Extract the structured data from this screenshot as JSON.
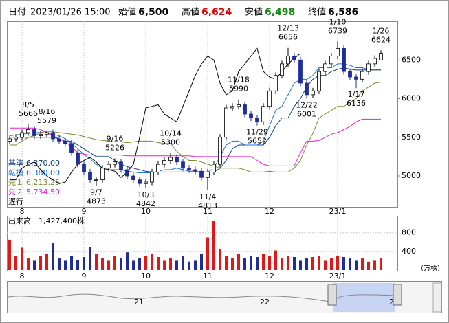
{
  "header": {
    "date_label": "日付",
    "datetime": "2023/01/26 15:00",
    "open_label": "始値",
    "open": "6,500",
    "high_label": "高値",
    "high": "6,624",
    "low_label": "安値",
    "low": "6,498",
    "close_label": "終値",
    "close": "6,586"
  },
  "navigator": {
    "labels": [
      "21",
      "22",
      "2"
    ]
  },
  "chart_data": [
    {
      "type": "candlestick",
      "categories": [
        null,
        null,
        "8",
        null,
        null,
        null,
        null,
        null,
        null,
        null,
        null,
        null,
        "9",
        null,
        null,
        null,
        null,
        null,
        null,
        null,
        null,
        null,
        "10",
        null,
        null,
        null,
        null,
        null,
        null,
        null,
        null,
        null,
        "11",
        null,
        null,
        null,
        null,
        null,
        null,
        null,
        null,
        null,
        "12",
        null,
        null,
        null,
        null,
        null,
        null,
        null,
        null,
        null,
        null,
        "23/1",
        null,
        null,
        null,
        null,
        null,
        null,
        null
      ],
      "open": [
        5450,
        5480,
        5500,
        5560,
        5600,
        5520,
        5540,
        5560,
        5480,
        5450,
        5420,
        5300,
        5150,
        5050,
        4950,
        4950,
        5100,
        5150,
        5180,
        5080,
        5000,
        4950,
        4900,
        4920,
        5050,
        5150,
        5200,
        5240,
        5180,
        5100,
        5080,
        5060,
        4980,
        5050,
        5150,
        5500,
        5880,
        5900,
        5920,
        5800,
        5750,
        5700,
        5900,
        6100,
        6300,
        6450,
        6550,
        6500,
        6200,
        6050,
        6100,
        6350,
        6450,
        6550,
        6650,
        6350,
        6280,
        6250,
        6350,
        6450,
        6500
      ],
      "high": [
        5520,
        5540,
        5600,
        5666,
        5640,
        5580,
        5579,
        5600,
        5520,
        5490,
        5460,
        5340,
        5190,
        5090,
        4990,
        5140,
        5190,
        5226,
        5220,
        5120,
        5040,
        4990,
        4960,
        5090,
        5190,
        5240,
        5300,
        5280,
        5220,
        5140,
        5120,
        5100,
        5090,
        5190,
        5540,
        5920,
        5940,
        5990,
        5960,
        5840,
        5790,
        5940,
        6140,
        6340,
        6490,
        6656,
        6590,
        6540,
        6240,
        6140,
        6390,
        6490,
        6590,
        6739,
        6690,
        6390,
        6320,
        6390,
        6490,
        6560,
        6624
      ],
      "low": [
        5410,
        5440,
        5460,
        5520,
        5480,
        5480,
        5500,
        5440,
        5410,
        5380,
        5260,
        5110,
        5010,
        4910,
        4873,
        4910,
        5060,
        5110,
        5040,
        4960,
        4910,
        4860,
        4842,
        4880,
        5010,
        5110,
        5160,
        5140,
        5060,
        5040,
        5020,
        4940,
        4813,
        5010,
        5110,
        5460,
        5840,
        5860,
        5760,
        5710,
        5652,
        5660,
        5860,
        6060,
        6260,
        6410,
        6460,
        6160,
        6001,
        6010,
        6060,
        6310,
        6410,
        6510,
        6310,
        6240,
        6136,
        6210,
        6310,
        6410,
        6498
      ],
      "close": [
        5480,
        5500,
        5560,
        5600,
        5520,
        5540,
        5560,
        5480,
        5450,
        5420,
        5300,
        5150,
        5050,
        4950,
        4950,
        5100,
        5150,
        5180,
        5080,
        5000,
        4950,
        4900,
        4920,
        5050,
        5150,
        5200,
        5240,
        5180,
        5100,
        5080,
        5060,
        4980,
        5050,
        5150,
        5500,
        5880,
        5900,
        5920,
        5800,
        5750,
        5700,
        5900,
        6100,
        6300,
        6450,
        6550,
        6500,
        6200,
        6050,
        6100,
        6350,
        6450,
        6550,
        6650,
        6350,
        6280,
        6250,
        6350,
        6450,
        6520,
        6586
      ],
      "up_color": "#ffffff",
      "down_color": "#1f2d9b",
      "ylim": [
        4600,
        7000
      ],
      "yticks": [
        5000,
        5500,
        6000,
        6500
      ],
      "lines": [
        {
          "name": "基準",
          "value_label": "6,370.00",
          "color": "#0b3c7a",
          "values": [
            5500,
            5500,
            5500,
            5500,
            5500,
            5500,
            5500,
            5500,
            5480,
            5450,
            5450,
            5400,
            5350,
            5300,
            5250,
            5250,
            5250,
            5200,
            5150,
            5120,
            5100,
            5080,
            5060,
            5050,
            5050,
            5050,
            5050,
            5050,
            5050,
            5050,
            5050,
            5050,
            5050,
            5050,
            5100,
            5200,
            5350,
            5400,
            5400,
            5400,
            5400,
            5400,
            5500,
            5650,
            5750,
            5750,
            5900,
            6000,
            6150,
            6250,
            6300,
            6300,
            6350,
            6380,
            6400,
            6380,
            6370,
            6370,
            6370,
            6370,
            6370
          ]
        },
        {
          "name": "転換",
          "value_label": "6,380.00",
          "color": "#1e6fe0",
          "values": [
            5520,
            5530,
            5540,
            5550,
            5560,
            5560,
            5550,
            5540,
            5520,
            5480,
            5420,
            5350,
            5280,
            5220,
            5150,
            5100,
            5080,
            5080,
            5080,
            5060,
            5050,
            5040,
            5040,
            5040,
            5060,
            5080,
            5080,
            5100,
            5080,
            5060,
            5060,
            5050,
            5050,
            5100,
            5250,
            5400,
            5450,
            5450,
            5400,
            5400,
            5400,
            5450,
            5650,
            5850,
            5900,
            6050,
            6200,
            6250,
            6250,
            6300,
            6400,
            6400,
            6400,
            6450,
            6450,
            6430,
            6400,
            6400,
            6380,
            6380,
            6380
          ]
        },
        {
          "name": "先１",
          "value_label": "6,213.25",
          "color": "#7b8a2a",
          "values": [
            5400,
            5400,
            5450,
            5500,
            5520,
            5560,
            5580,
            5570,
            5560,
            5550,
            5540,
            5530,
            5510,
            5490,
            5470,
            5460,
            5450,
            5440,
            5440,
            5430,
            5440,
            5450,
            5450,
            5450,
            5430,
            5420,
            5420,
            5320,
            5250,
            5200,
            5200,
            5180,
            5150,
            5130,
            5100,
            5100,
            5100,
            5100,
            5080,
            5050,
            5050,
            5050,
            5060,
            5050,
            5050,
            5050,
            5100,
            5200,
            5400,
            5550,
            5750,
            5800,
            5850,
            5900,
            5900,
            5950,
            6000,
            6100,
            6150,
            6200,
            6213.25
          ]
        },
        {
          "name": "先２",
          "value_label": "5,734.50",
          "color": "#e020d0",
          "values": [
            5620,
            5620,
            5620,
            5620,
            5620,
            5600,
            5560,
            5520,
            5480,
            5440,
            5380,
            5300,
            5280,
            5270,
            5270,
            5270,
            5270,
            5270,
            5270,
            5260,
            5260,
            5260,
            5260,
            5260,
            5260,
            5260,
            5260,
            5260,
            5260,
            5260,
            5250,
            5250,
            5250,
            5250,
            5250,
            5250,
            5250,
            5250,
            5250,
            5250,
            5200,
            5150,
            5130,
            5130,
            5130,
            5130,
            5130,
            5300,
            5450,
            5450,
            5460,
            5500,
            5540,
            5560,
            5600,
            5640,
            5700,
            5734.5,
            5734.5,
            5734.5,
            5734.5
          ]
        },
        {
          "name": "遅行",
          "color": "#000000",
          "values": [
            4950,
            4950,
            5100,
            5150,
            5180,
            5080,
            5000,
            4950,
            4900,
            4920,
            5050,
            5150,
            5200,
            5240,
            5180,
            5100,
            5080,
            5060,
            4980,
            5050,
            5150,
            5500,
            5880,
            5900,
            5920,
            5800,
            5750,
            5700,
            5900,
            6100,
            6300,
            6450,
            6550,
            6500,
            6200,
            6050,
            6100,
            6350,
            6450,
            6550,
            6650,
            6350,
            6280,
            6250,
            6350,
            6450,
            6520,
            6586,
            null,
            null,
            null,
            null,
            null,
            null,
            null,
            null,
            null,
            null,
            null,
            null,
            null
          ]
        }
      ],
      "annotations": [
        {
          "date": "8/5",
          "value": 5666
        },
        {
          "date": "8/16",
          "value": 5579
        },
        {
          "date": "9/7",
          "value": 4873
        },
        {
          "date": "9/16",
          "value": 5226
        },
        {
          "date": "10/3",
          "value": 4842
        },
        {
          "date": "10/14",
          "value": 5300
        },
        {
          "date": "11/4",
          "value": 4813
        },
        {
          "date": "11/18",
          "value": 5990
        },
        {
          "date": "11/29",
          "value": 5652
        },
        {
          "date": "12/13",
          "value": 6656
        },
        {
          "date": "12/22",
          "value": 6001
        },
        {
          "date": "1/10",
          "value": 6739
        },
        {
          "date": "1/17",
          "value": 6136
        },
        {
          "date": "1/26",
          "value": 6624
        }
      ]
    },
    {
      "type": "bar",
      "title": "出来高",
      "total": "1,427,400株",
      "unit": "（万株）",
      "up_color": "#e01818",
      "down_color": "#1f2d9b",
      "values": [
        650,
        300,
        480,
        250,
        200,
        300,
        350,
        580,
        250,
        200,
        300,
        220,
        280,
        500,
        350,
        250,
        200,
        300,
        250,
        380,
        200,
        250,
        300,
        350,
        280,
        200,
        250,
        200,
        300,
        180,
        200,
        350,
        700,
        1050,
        450,
        300,
        250,
        350,
        250,
        300,
        280,
        350,
        300,
        420,
        250,
        300,
        280,
        200,
        250,
        280,
        300,
        200,
        250,
        300,
        280,
        250,
        200,
        250,
        180,
        200,
        250
      ],
      "ylim": [
        0,
        1150
      ],
      "yticks": [
        400,
        800
      ]
    }
  ]
}
